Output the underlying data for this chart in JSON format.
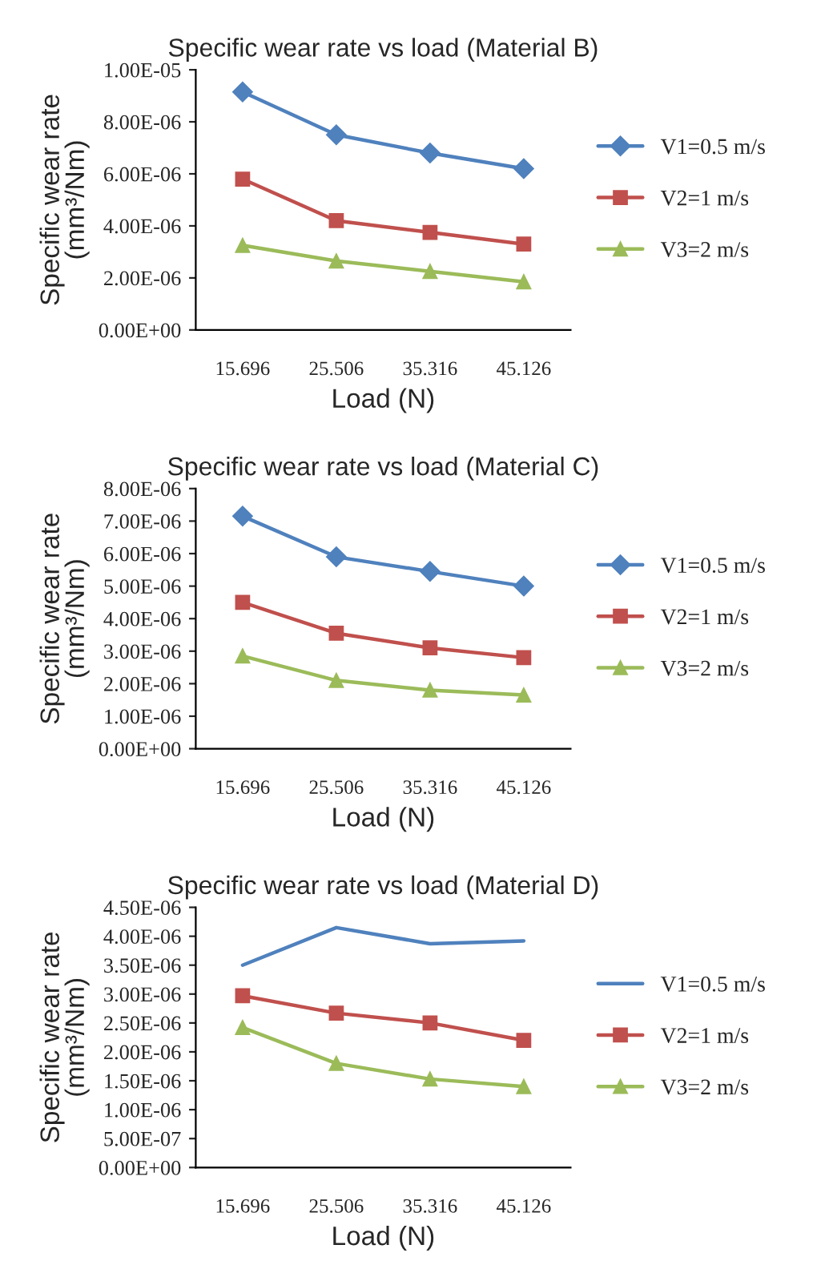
{
  "chart_data": [
    {
      "type": "line",
      "title": "Specific wear rate vs load (Material B)",
      "xlabel": "Load (N)",
      "ylabel": "Specific wear rate\n(mm³/Nm)",
      "categories": [
        "15.696",
        "25.506",
        "35.316",
        "45.126"
      ],
      "ylim": [
        0,
        1e-05
      ],
      "yticks": [
        {
          "value": 0,
          "label": "0.00E+00"
        },
        {
          "value": 2e-06,
          "label": "2.00E-06"
        },
        {
          "value": 4e-06,
          "label": "4.00E-06"
        },
        {
          "value": 6e-06,
          "label": "6.00E-06"
        },
        {
          "value": 8e-06,
          "label": "8.00E-06"
        },
        {
          "value": 1e-05,
          "label": "1.00E-05"
        }
      ],
      "grid": false,
      "legend": "right",
      "series": [
        {
          "name": "V1=0.5 m/s",
          "color": "#4f81bd",
          "marker": "diamond",
          "values": [
            9.15e-06,
            7.5e-06,
            6.8e-06,
            6.2e-06
          ]
        },
        {
          "name": "V2=1 m/s",
          "color": "#c0504d",
          "marker": "square",
          "values": [
            5.8e-06,
            4.2e-06,
            3.75e-06,
            3.3e-06
          ]
        },
        {
          "name": "V3=2 m/s",
          "color": "#9bbb59",
          "marker": "triangle",
          "values": [
            3.25e-06,
            2.65e-06,
            2.25e-06,
            1.85e-06
          ]
        }
      ]
    },
    {
      "type": "line",
      "title": "Specific wear rate vs load (Material C)",
      "xlabel": "Load (N)",
      "ylabel": "Specific wear rate\n(mm³/Nm)",
      "categories": [
        "15.696",
        "25.506",
        "35.316",
        "45.126"
      ],
      "ylim": [
        0,
        8e-06
      ],
      "yticks": [
        {
          "value": 0,
          "label": "0.00E+00"
        },
        {
          "value": 1e-06,
          "label": "1.00E-06"
        },
        {
          "value": 2e-06,
          "label": "2.00E-06"
        },
        {
          "value": 3e-06,
          "label": "3.00E-06"
        },
        {
          "value": 4e-06,
          "label": "4.00E-06"
        },
        {
          "value": 5e-06,
          "label": "5.00E-06"
        },
        {
          "value": 6e-06,
          "label": "6.00E-06"
        },
        {
          "value": 7e-06,
          "label": "7.00E-06"
        },
        {
          "value": 8e-06,
          "label": "8.00E-06"
        }
      ],
      "grid": false,
      "legend": "right",
      "series": [
        {
          "name": "V1=0.5 m/s",
          "color": "#4f81bd",
          "marker": "diamond",
          "values": [
            7.15e-06,
            5.9e-06,
            5.45e-06,
            5e-06
          ]
        },
        {
          "name": "V2=1 m/s",
          "color": "#c0504d",
          "marker": "square",
          "values": [
            4.5e-06,
            3.55e-06,
            3.1e-06,
            2.8e-06
          ]
        },
        {
          "name": "V3=2 m/s",
          "color": "#9bbb59",
          "marker": "triangle",
          "values": [
            2.85e-06,
            2.1e-06,
            1.8e-06,
            1.65e-06
          ]
        }
      ]
    },
    {
      "type": "line",
      "title": "Specific wear rate vs load (Material D)",
      "xlabel": "Load (N)",
      "ylabel": "Specific wear rate\n(mm³/Nm)",
      "categories": [
        "15.696",
        "25.506",
        "35.316",
        "45.126"
      ],
      "ylim": [
        0,
        4.5e-06
      ],
      "yticks": [
        {
          "value": 0,
          "label": "0.00E+00"
        },
        {
          "value": 5e-07,
          "label": "5.00E-07"
        },
        {
          "value": 1e-06,
          "label": "1.00E-06"
        },
        {
          "value": 1.5e-06,
          "label": "1.50E-06"
        },
        {
          "value": 2e-06,
          "label": "2.00E-06"
        },
        {
          "value": 2.5e-06,
          "label": "2.50E-06"
        },
        {
          "value": 3e-06,
          "label": "3.00E-06"
        },
        {
          "value": 3.5e-06,
          "label": "3.50E-06"
        },
        {
          "value": 4e-06,
          "label": "4.00E-06"
        },
        {
          "value": 4.5e-06,
          "label": "4.50E-06"
        }
      ],
      "grid": false,
      "legend": "right",
      "series": [
        {
          "name": "V1=0.5 m/s",
          "color": "#4f81bd",
          "marker": "none",
          "values": [
            3.5e-06,
            4.15e-06,
            3.87e-06,
            3.92e-06
          ]
        },
        {
          "name": "V2=1 m/s",
          "color": "#c0504d",
          "marker": "square",
          "values": [
            2.97e-06,
            2.67e-06,
            2.5e-06,
            2.2e-06
          ]
        },
        {
          "name": "V3=2 m/s",
          "color": "#9bbb59",
          "marker": "triangle",
          "values": [
            2.42e-06,
            1.8e-06,
            1.53e-06,
            1.4e-06
          ]
        }
      ]
    }
  ]
}
